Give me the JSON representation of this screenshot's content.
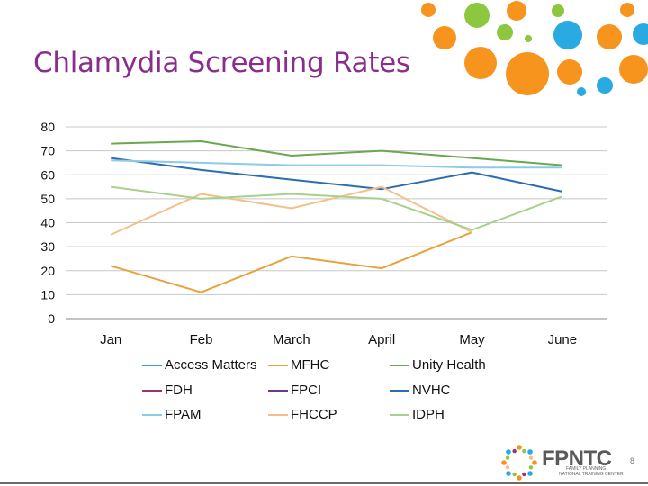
{
  "slide": {
    "title": "Chlamydia Screening Rates",
    "page_number": "8",
    "logo": {
      "mark": "FPNTC",
      "sub1": "FAMILY PLANNING",
      "sub2": "NATIONAL TRAINING CENTER"
    }
  },
  "chart_data": {
    "type": "line",
    "categories": [
      "Jan",
      "Feb",
      "March",
      "April",
      "May",
      "June"
    ],
    "ylim": [
      0,
      80
    ],
    "yticks": [
      0,
      10,
      20,
      30,
      40,
      50,
      60,
      70,
      80
    ],
    "grid": true,
    "legend_position": "bottom",
    "series": [
      {
        "name": "Access Matters",
        "color": "#3aa0c8",
        "values": [
          null,
          null,
          null,
          null,
          null,
          null
        ]
      },
      {
        "name": "MFHC",
        "color": "#e8a23c",
        "values": [
          22,
          11,
          26,
          21,
          36,
          null
        ]
      },
      {
        "name": "Unity Health",
        "color": "#6aa84f",
        "values": [
          73,
          74,
          68,
          70,
          67,
          64
        ]
      },
      {
        "name": "FDH",
        "color": "#a0306e",
        "values": [
          null,
          null,
          null,
          null,
          null,
          null
        ]
      },
      {
        "name": "FPCI",
        "color": "#6a3a8c",
        "values": [
          null,
          null,
          null,
          null,
          null,
          null
        ]
      },
      {
        "name": "NVHC",
        "color": "#2a6db0",
        "values": [
          67,
          62,
          58,
          54,
          61,
          53
        ]
      },
      {
        "name": "FPAM",
        "color": "#8ecae6",
        "values": [
          66,
          65,
          64,
          64,
          63,
          63
        ]
      },
      {
        "name": "FHCCP",
        "color": "#f4c08a",
        "values": [
          35,
          52,
          46,
          55,
          36,
          null
        ]
      },
      {
        "name": "IDPH",
        "color": "#a8d08d",
        "values": [
          55,
          50,
          52,
          50,
          37,
          51
        ]
      }
    ]
  }
}
